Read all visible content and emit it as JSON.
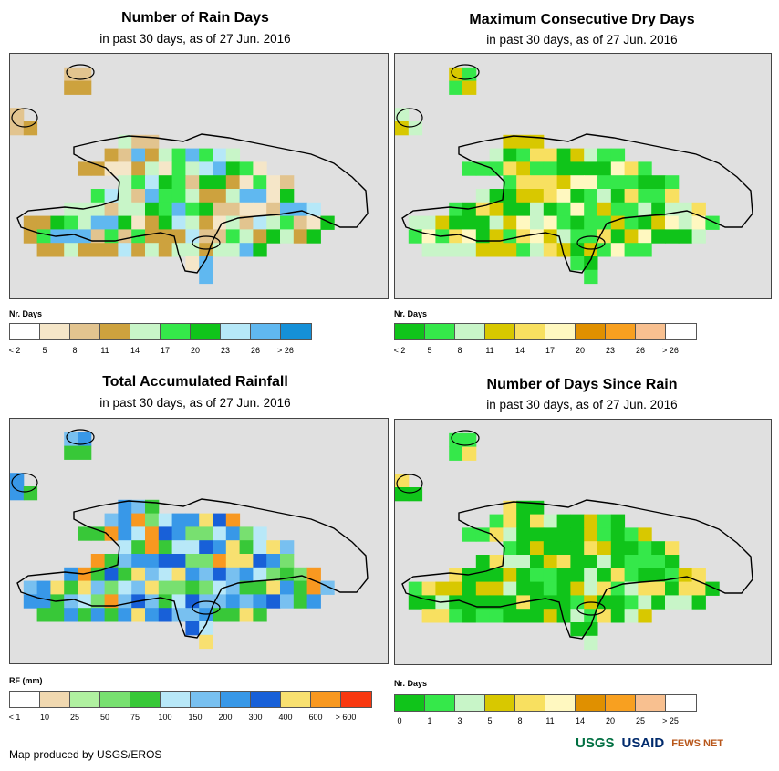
{
  "panels": [
    {
      "id": "rain_days",
      "title": "Number of Rain Days",
      "subtitle": "in past 30 days, as of 27 Jun. 2016",
      "legend_label": "Nr. Days",
      "legend_colors": [
        "#ffffff",
        "#f5e6c8",
        "#e2c48f",
        "#cda23e",
        "#c8f5c8",
        "#35e84a",
        "#10c41a",
        "#b6e8f8",
        "#60b8f0",
        "#1590d8"
      ],
      "legend_ticks": [
        "< 2",
        "5",
        "8",
        "11",
        "14",
        "17",
        "20",
        "23",
        "26",
        "> 26"
      ]
    },
    {
      "id": "dry_days",
      "title": "Maximum Consecutive Dry Days",
      "subtitle": "in past 30 days, as of 27 Jun. 2016",
      "legend_label": "Nr. Days",
      "legend_colors": [
        "#10c41a",
        "#35e84a",
        "#c8f5c8",
        "#d8c800",
        "#f8e060",
        "#fff8c0",
        "#e09000",
        "#f8a020",
        "#f8c090",
        "#ffffff"
      ],
      "legend_ticks": [
        "< 2",
        "5",
        "8",
        "11",
        "14",
        "17",
        "20",
        "23",
        "26",
        "> 26"
      ]
    },
    {
      "id": "rainfall",
      "title": "Total Accumulated Rainfall",
      "subtitle": "in past 30 days, as of 27 Jun. 2016",
      "legend_label": "RF (mm)",
      "legend_colors": [
        "#ffffff",
        "#f0d8b0",
        "#b0f0a0",
        "#78e070",
        "#38c838",
        "#b8e8f8",
        "#78c0f0",
        "#3898e8",
        "#1860d8",
        "#f8e070",
        "#f89820",
        "#f83810"
      ],
      "legend_ticks": [
        "< 1",
        "10",
        "25",
        "50",
        "75",
        "100",
        "150",
        "200",
        "300",
        "400",
        "600",
        "> 600"
      ]
    },
    {
      "id": "days_since_rain",
      "title": "Number of Days Since Rain",
      "subtitle": "in past 30 days, as of 27 Jun. 2016",
      "legend_label": "Nr. Days",
      "legend_colors": [
        "#10c41a",
        "#35e84a",
        "#c8f5c8",
        "#d8c800",
        "#f8e060",
        "#fff8c0",
        "#e09000",
        "#f8a020",
        "#f8c090",
        "#ffffff"
      ],
      "legend_ticks": [
        "0",
        "1",
        "3",
        "5",
        "8",
        "11",
        "14",
        "20",
        "25",
        "> 25"
      ]
    }
  ],
  "footer": "Map produced by USGS/EROS",
  "logos": {
    "usgs": "USGS",
    "usaid": "USAID",
    "fewsnet": "FEWS NET"
  }
}
